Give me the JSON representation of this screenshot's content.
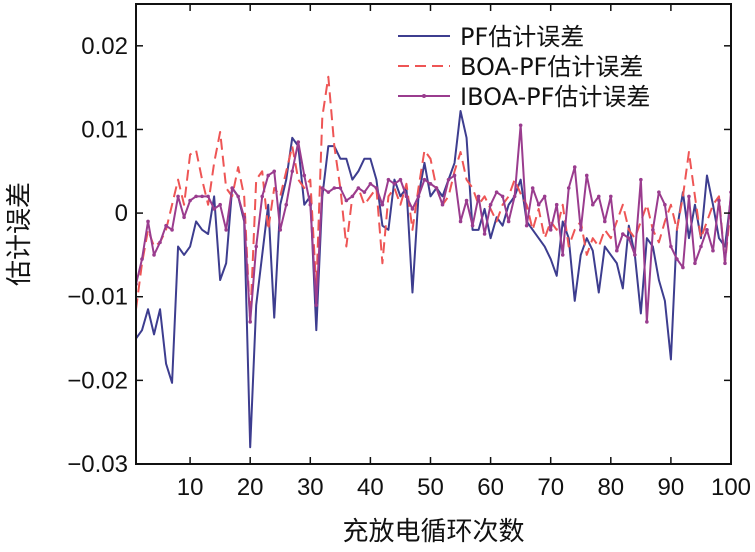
{
  "chart_data": {
    "type": "line",
    "xlabel": "充放电循环次数",
    "ylabel": "估计误差",
    "xlim": [
      1,
      100
    ],
    "ylim": [
      -0.03,
      0.025
    ],
    "x_ticks": [
      10,
      20,
      30,
      40,
      50,
      60,
      70,
      80,
      90,
      100
    ],
    "y_ticks": [
      0.02,
      0.01,
      0,
      -0.01,
      -0.02,
      -0.03
    ],
    "y_tick_labels": [
      "0.02",
      "0.01",
      "0",
      "−0.01",
      "−0.02",
      "−0.03"
    ],
    "grid": false,
    "legend_position": "top-right",
    "x": [
      1,
      2,
      3,
      4,
      5,
      6,
      7,
      8,
      9,
      10,
      11,
      12,
      13,
      14,
      15,
      16,
      17,
      18,
      19,
      20,
      21,
      22,
      23,
      24,
      25,
      26,
      27,
      28,
      29,
      30,
      31,
      32,
      33,
      34,
      35,
      36,
      37,
      38,
      39,
      40,
      41,
      42,
      43,
      44,
      45,
      46,
      47,
      48,
      49,
      50,
      51,
      52,
      53,
      54,
      55,
      56,
      57,
      58,
      59,
      60,
      61,
      62,
      63,
      64,
      65,
      66,
      67,
      68,
      69,
      70,
      71,
      72,
      73,
      74,
      75,
      76,
      77,
      78,
      79,
      80,
      81,
      82,
      83,
      84,
      85,
      86,
      87,
      88,
      89,
      90,
      91,
      92,
      93,
      94,
      95,
      96,
      97,
      98,
      99,
      100
    ],
    "series": [
      {
        "name": "PF估计误差",
        "color": "#3d3d8f",
        "dash": "solid",
        "marker": false,
        "values": [
          -0.015,
          -0.014,
          -0.0115,
          -0.0145,
          -0.0115,
          -0.018,
          -0.0203,
          -0.004,
          -0.005,
          -0.004,
          -0.001,
          -0.002,
          -0.0025,
          0.002,
          -0.008,
          -0.006,
          0.003,
          0.002,
          -0.001,
          -0.028,
          -0.011,
          -0.005,
          0.001,
          -0.0125,
          0.001,
          0.004,
          0.009,
          0.008,
          0.001,
          0.002,
          -0.014,
          0.002,
          0.008,
          0.008,
          0.0065,
          0.0065,
          0.004,
          0.005,
          0.0065,
          0.0065,
          0.004,
          -0.0015,
          -0.002,
          0.004,
          0.002,
          0.003,
          -0.0095,
          0.002,
          0.006,
          0.002,
          0.003,
          0.002,
          0.004,
          0.006,
          0.0122,
          0.009,
          -0.002,
          -0.002,
          0.0005,
          -0.003,
          -0.0005,
          -0.0015,
          0.001,
          0.002,
          0.004,
          -0.001,
          -0.002,
          -0.003,
          -0.004,
          -0.0055,
          -0.0075,
          -0.001,
          -0.003,
          -0.0105,
          -0.005,
          -0.003,
          -0.0045,
          -0.0095,
          -0.004,
          -0.005,
          -0.006,
          -0.009,
          -0.0015,
          -0.005,
          -0.012,
          -0.003,
          -0.004,
          -0.008,
          -0.0105,
          -0.0175,
          -0.002,
          0.0025,
          -0.003,
          0.001,
          -0.003,
          0.0045,
          0.001,
          -0.003,
          -0.004,
          0.002
        ]
      },
      {
        "name": "BOA-PF估计误差",
        "color": "#ee5555",
        "dash": "dashed",
        "marker": false,
        "values": [
          -0.0115,
          -0.006,
          -0.002,
          -0.004,
          -0.0035,
          -0.002,
          0.001,
          0.004,
          0.001,
          0.007,
          0.0075,
          0.004,
          0.001,
          0.006,
          0.0097,
          0.003,
          0.002,
          0.0055,
          0.002,
          -0.013,
          0.004,
          0.005,
          -0.002,
          0.003,
          0.002,
          0.005,
          0.008,
          0.004,
          0.003,
          0.004,
          -0.009,
          0.0115,
          0.0163,
          0.008,
          0.003,
          -0.004,
          0.002,
          0.003,
          0.001,
          0.002,
          0.003,
          -0.006,
          0.002,
          0.003,
          0.001,
          0.0035,
          -0.002,
          0.003,
          0.0075,
          0.0065,
          0.003,
          0.001,
          0.002,
          0.005,
          0.0073,
          0.004,
          0.003,
          0.001,
          0.002,
          0.0005,
          -0.001,
          0.001,
          0.002,
          0.004,
          0.0023,
          0.001,
          -0.002,
          0.0005,
          -0.003,
          -0.001,
          -0.002,
          0.001,
          -0.004,
          -0.002,
          -0.001,
          -0.005,
          -0.003,
          -0.004,
          -0.002,
          -0.003,
          -0.001,
          0.001,
          -0.002,
          -0.003,
          -0.001,
          0.001,
          -0.002,
          -0.0035,
          -0.001,
          0.001,
          -0.002,
          0.002,
          0.0073,
          0.002,
          -0.003,
          -0.001,
          0.001,
          0.002,
          -0.006,
          0.001
        ]
      },
      {
        "name": "IBOA-PF估计误差",
        "color": "#9a3c8e",
        "dash": "solid",
        "marker": true,
        "values": [
          -0.0085,
          -0.0055,
          -0.001,
          -0.005,
          -0.0035,
          -0.0015,
          -0.002,
          0.002,
          -0.0005,
          0.0015,
          0.002,
          0.002,
          0.002,
          0.0005,
          0.001,
          -0.002,
          0.003,
          0.002,
          -0.0005,
          -0.013,
          -0.004,
          0.002,
          0.0045,
          0.005,
          -0.002,
          0.001,
          0.005,
          0.0085,
          0.0045,
          0.001,
          -0.011,
          0.003,
          0.0025,
          0.003,
          0.003,
          0.0015,
          0.002,
          0.003,
          0.0025,
          0.0035,
          0.003,
          0.001,
          0.004,
          0.0035,
          0.004,
          0.002,
          0.0005,
          0.002,
          0.004,
          0.0035,
          0.003,
          0.001,
          0.004,
          0.0045,
          -0.001,
          0.0015,
          -0.0015,
          0.002,
          -0.0025,
          0.001,
          0.0025,
          0.002,
          -0.001,
          0.002,
          0.0105,
          -0.0015,
          0.003,
          0.001,
          0.002,
          -0.002,
          0.001,
          -0.005,
          0.003,
          0.0055,
          -0.002,
          0.0045,
          0.001,
          0.002,
          -0.001,
          0.002,
          -0.0045,
          -0.0025,
          -0.003,
          -0.005,
          0.004,
          -0.013,
          -0.002,
          0.0025,
          0.001,
          -0.004,
          -0.0055,
          -0.0065,
          0.002,
          -0.006,
          -0.004,
          -0.002,
          -0.0045,
          0.0015,
          -0.006,
          0.0025
        ]
      }
    ]
  }
}
